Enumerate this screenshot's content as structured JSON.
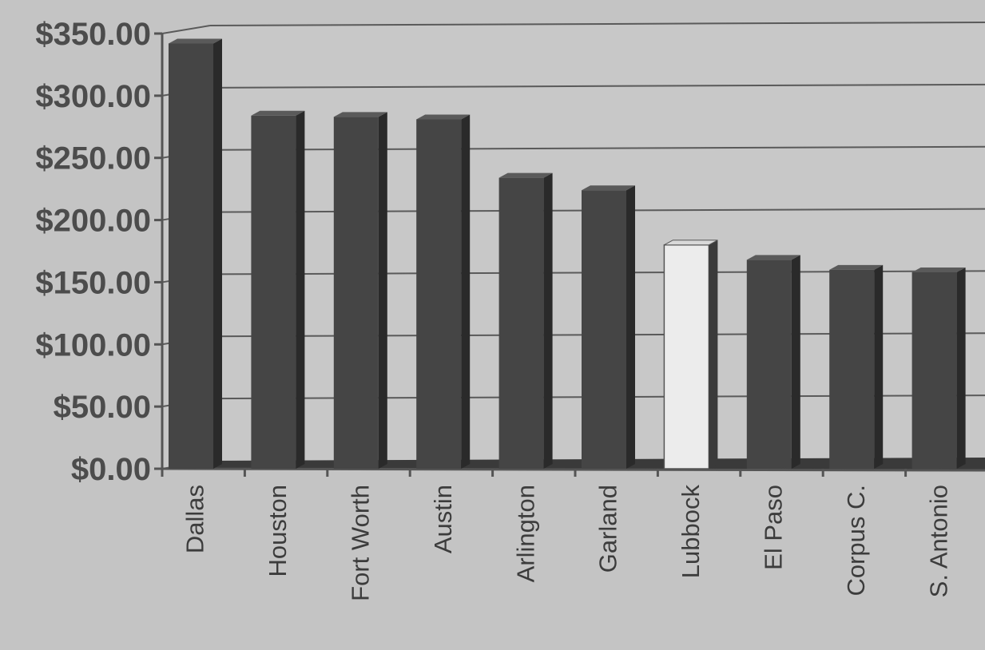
{
  "chart_data": {
    "type": "bar",
    "categories": [
      "Dallas",
      "Houston",
      "Fort Worth",
      "Austin",
      "Arlington",
      "Garland",
      "Lubbock",
      "El Paso",
      "Corpus C.",
      "S. Antonio"
    ],
    "values": [
      342,
      284,
      283,
      281,
      234,
      224,
      180,
      168,
      160,
      158
    ],
    "highlight_category": "Lubbock",
    "ylim": [
      0,
      350
    ],
    "yticks": [
      0,
      50,
      100,
      150,
      200,
      250,
      300,
      350
    ],
    "ytick_labels": [
      "$0.00",
      "$50.00",
      "$100.00",
      "$150.00",
      "$200.00",
      "$250.00",
      "$300.00",
      "$350.00"
    ],
    "grid": true,
    "colors": {
      "bar": "#454545",
      "bar_side": "#2a2a2a",
      "highlight": "#ececec",
      "highlight_side": "#3a3a3a",
      "grid": "#5a5a5a",
      "wall": "#c8c8c8",
      "floor": "#3a3a3a"
    }
  }
}
